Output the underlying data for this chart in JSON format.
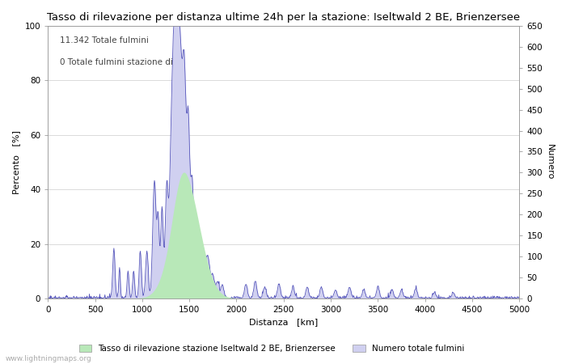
{
  "title": "Tasso di rilevazione per distanza ultime 24h per la stazione: Iseltwald 2 BE, Brienzersee",
  "xlabel": "Distanza   [km]",
  "ylabel_left": "Percento   [%]",
  "ylabel_right": "Numero",
  "annotation_line1": "11.342 Totale fulmini",
  "annotation_line2": "0 Totale fulmini stazione di",
  "xlim": [
    0,
    5000
  ],
  "ylim_left": [
    0,
    100
  ],
  "ylim_right": [
    0,
    650
  ],
  "xticks": [
    0,
    500,
    1000,
    1500,
    2000,
    2500,
    3000,
    3500,
    4000,
    4500,
    5000
  ],
  "yticks_left": [
    0,
    20,
    40,
    60,
    80,
    100
  ],
  "yticks_right": [
    0,
    50,
    100,
    150,
    200,
    250,
    300,
    350,
    400,
    450,
    500,
    550,
    600,
    650
  ],
  "legend_label_green": "Tasso di rilevazione stazione Iseltwald 2 BE, Brienzersee",
  "legend_label_blue": "Numero totale fulmini",
  "fill_green_color": "#b8e8b8",
  "fill_blue_color": "#d0d0f0",
  "line_color": "#5555bb",
  "bg_color": "#ffffff",
  "grid_color": "#cccccc",
  "watermark": "www.lightningmaps.org",
  "title_fontsize": 9.5,
  "label_fontsize": 8,
  "tick_fontsize": 7.5,
  "annotation_fontsize": 7.5
}
